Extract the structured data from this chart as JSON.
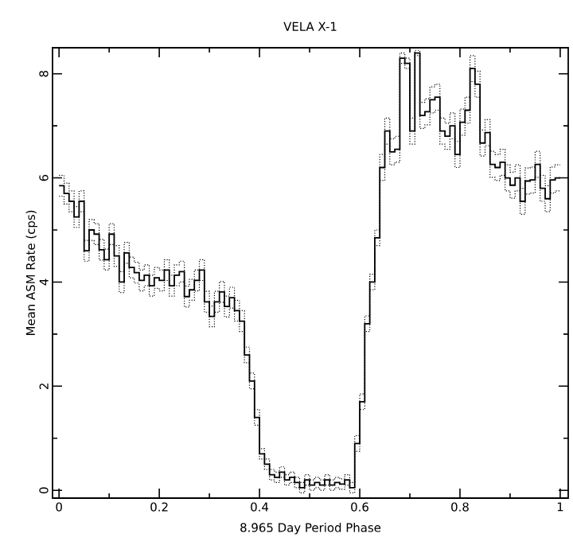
{
  "chart_data": {
    "type": "step",
    "title": "VELA X-1",
    "xlabel": "8.965 Day Period Phase",
    "ylabel": "Mean ASM Rate (cps)",
    "x": [
      0,
      0.01,
      0.02,
      0.03,
      0.04,
      0.05,
      0.06,
      0.07,
      0.08,
      0.09,
      0.1,
      0.11,
      0.12,
      0.13,
      0.14,
      0.15,
      0.16,
      0.17,
      0.18,
      0.19,
      0.2,
      0.21,
      0.22,
      0.23,
      0.24,
      0.25,
      0.26,
      0.27,
      0.28,
      0.29,
      0.3,
      0.31,
      0.32,
      0.33,
      0.34,
      0.35,
      0.36,
      0.37,
      0.38,
      0.39,
      0.4,
      0.41,
      0.42,
      0.43,
      0.44,
      0.45,
      0.46,
      0.47,
      0.48,
      0.49,
      0.5,
      0.51,
      0.52,
      0.53,
      0.54,
      0.55,
      0.56,
      0.57,
      0.58,
      0.59,
      0.6,
      0.61,
      0.62,
      0.63,
      0.64,
      0.65,
      0.66,
      0.67,
      0.68,
      0.69,
      0.7,
      0.71,
      0.72,
      0.73,
      0.74,
      0.75,
      0.76,
      0.77,
      0.78,
      0.79,
      0.8,
      0.81,
      0.82,
      0.83,
      0.84,
      0.85,
      0.86,
      0.87,
      0.88,
      0.89,
      0.9,
      0.91,
      0.92,
      0.93,
      0.94,
      0.95,
      0.96,
      0.97,
      0.98,
      0.99,
      1
    ],
    "series": [
      {
        "color": "#000000",
        "line_style": "solid",
        "values": [
          5.85,
          5.7,
          5.55,
          5.25,
          5.55,
          4.6,
          5.0,
          4.92,
          4.62,
          4.43,
          4.92,
          4.5,
          4.0,
          4.56,
          4.28,
          4.18,
          4.03,
          4.13,
          3.93,
          4.08,
          4.03,
          4.23,
          3.93,
          4.13,
          4.2,
          3.72,
          3.85,
          4.03,
          4.23,
          3.62,
          3.34,
          3.62,
          3.81,
          3.53,
          3.7,
          3.45,
          3.25,
          2.6,
          2.1,
          1.4,
          0.7,
          0.5,
          0.3,
          0.25,
          0.35,
          0.2,
          0.25,
          0.15,
          0.05,
          0.2,
          0.1,
          0.15,
          0.1,
          0.2,
          0.1,
          0.15,
          0.12,
          0.2,
          0.05,
          0.9,
          1.7,
          3.2,
          4.0,
          4.85,
          6.2,
          6.9,
          6.5,
          6.55,
          8.3,
          8.2,
          6.9,
          8.4,
          7.2,
          7.27,
          7.5,
          7.55,
          6.9,
          6.8,
          7.0,
          6.45,
          7.07,
          7.3,
          8.1,
          7.8,
          6.67,
          6.87,
          6.26,
          6.2,
          6.3,
          6.0,
          5.86,
          6.0,
          5.55,
          5.94,
          5.96,
          6.26,
          5.8,
          5.6,
          5.96,
          6.0,
          6.0
        ]
      },
      {
        "color": "#000000",
        "line_style": "dotted",
        "values": [
          6.05,
          5.9,
          5.75,
          5.45,
          5.75,
          4.8,
          5.2,
          5.12,
          4.82,
          4.63,
          5.12,
          4.7,
          4.2,
          4.76,
          4.48,
          4.38,
          4.23,
          4.33,
          4.13,
          4.28,
          4.23,
          4.43,
          4.13,
          4.33,
          4.4,
          3.92,
          4.05,
          4.23,
          4.43,
          3.82,
          3.54,
          3.82,
          4.01,
          3.73,
          3.9,
          3.65,
          3.45,
          2.75,
          2.25,
          1.55,
          0.8,
          0.6,
          0.4,
          0.35,
          0.45,
          0.3,
          0.35,
          0.25,
          0.15,
          0.3,
          0.2,
          0.25,
          0.2,
          0.3,
          0.2,
          0.25,
          0.22,
          0.3,
          0.15,
          1.05,
          1.85,
          3.35,
          4.15,
          5.0,
          6.45,
          7.15,
          6.75,
          6.8,
          8.4,
          8.3,
          7.15,
          8.45,
          7.45,
          7.52,
          7.75,
          7.8,
          7.15,
          7.05,
          7.25,
          6.7,
          7.32,
          7.55,
          8.35,
          8.05,
          6.92,
          7.12,
          6.51,
          6.45,
          6.55,
          6.25,
          6.11,
          6.25,
          5.8,
          6.19,
          6.21,
          6.51,
          6.05,
          5.85,
          6.21,
          6.25,
          6.25
        ]
      },
      {
        "color": "#000000",
        "line_style": "dotted",
        "values": [
          5.65,
          5.5,
          5.35,
          5.05,
          5.35,
          4.4,
          4.8,
          4.72,
          4.42,
          4.23,
          4.72,
          4.3,
          3.8,
          4.36,
          4.08,
          3.98,
          3.83,
          3.93,
          3.73,
          3.88,
          3.83,
          4.03,
          3.73,
          3.93,
          4.0,
          3.52,
          3.65,
          3.83,
          4.03,
          3.42,
          3.14,
          3.42,
          3.61,
          3.33,
          3.5,
          3.25,
          3.05,
          2.45,
          1.95,
          1.25,
          0.6,
          0.4,
          0.2,
          0.15,
          0.25,
          0.1,
          0.15,
          0.05,
          -0.05,
          0.1,
          0.0,
          0.05,
          0.0,
          0.1,
          0.0,
          0.05,
          0.02,
          0.1,
          -0.05,
          0.75,
          1.55,
          3.05,
          3.85,
          4.7,
          5.95,
          6.65,
          6.25,
          6.3,
          8.2,
          8.1,
          6.65,
          8.35,
          6.95,
          7.02,
          7.25,
          7.3,
          6.65,
          6.55,
          6.75,
          6.2,
          6.82,
          7.05,
          7.85,
          7.55,
          6.42,
          6.62,
          6.01,
          5.95,
          6.05,
          5.75,
          5.61,
          5.75,
          5.3,
          5.69,
          5.71,
          6.01,
          5.55,
          5.35,
          5.71,
          5.75,
          5.75
        ]
      }
    ],
    "xlim": [
      -0.013,
      1.016
    ],
    "ylim": [
      -0.15,
      8.5
    ],
    "xticks": [
      0,
      0.2,
      0.4,
      0.6,
      0.8,
      1
    ],
    "yticks": [
      0,
      2,
      4,
      6,
      8
    ]
  }
}
